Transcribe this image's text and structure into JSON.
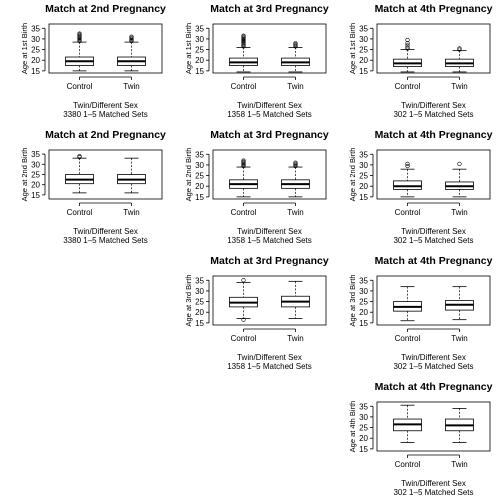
{
  "chart_data": [
    {
      "type": "box",
      "row": 0,
      "col": 0,
      "title": "Match at 2nd Pregnancy",
      "ylabel": "Age at 1st Birth",
      "caption": [
        "Twin/Different Sex",
        "3380 1–5 Matched Sets"
      ],
      "ylim": [
        14,
        37
      ],
      "yticks": [
        15,
        20,
        25,
        30,
        35
      ],
      "categories": [
        "Control",
        "Twin"
      ],
      "boxes": [
        {
          "whislo": 15,
          "q1": 17.5,
          "med": 19.5,
          "q3": 21.5,
          "whishi": 28.5,
          "outliers": [
            29,
            29.5,
            30,
            30.5,
            31,
            31.5,
            32,
            32.5
          ]
        },
        {
          "whislo": 15,
          "q1": 17.5,
          "med": 19.5,
          "q3": 21.5,
          "whishi": 28.5,
          "outliers": [
            29,
            29.5,
            30,
            30.5,
            31
          ]
        }
      ]
    },
    {
      "type": "box",
      "row": 0,
      "col": 1,
      "title": "Match at 3rd Pregnancy",
      "ylabel": "Age at 1st Birth",
      "caption": [
        "Twin/Different Sex",
        "1358 1–5 Matched Sets"
      ],
      "ylim": [
        14,
        37
      ],
      "yticks": [
        15,
        20,
        25,
        30,
        35
      ],
      "categories": [
        "Control",
        "Twin"
      ],
      "boxes": [
        {
          "whislo": 14.5,
          "q1": 17.5,
          "med": 19,
          "q3": 21,
          "whishi": 26,
          "outliers": [
            26.5,
            27,
            27.5,
            28,
            28.5,
            29,
            29.5,
            30,
            30.5,
            31,
            31.5
          ]
        },
        {
          "whislo": 14.5,
          "q1": 17.5,
          "med": 19,
          "q3": 21,
          "whishi": 26,
          "outliers": [
            26.5,
            27,
            27.5,
            28
          ]
        }
      ]
    },
    {
      "type": "box",
      "row": 0,
      "col": 2,
      "title": "Match at 4th Pregnancy",
      "ylabel": "Age at 1st Birth",
      "caption": [
        "Twin/Different Sex",
        "302 1–5 Matched Sets"
      ],
      "ylim": [
        14,
        37
      ],
      "yticks": [
        15,
        20,
        25,
        30,
        35
      ],
      "categories": [
        "Control",
        "Twin"
      ],
      "boxes": [
        {
          "whislo": 14.5,
          "q1": 17,
          "med": 18.5,
          "q3": 20.5,
          "whishi": 25,
          "outliers": [
            25.5,
            26,
            27,
            28,
            29.5
          ]
        },
        {
          "whislo": 14.5,
          "q1": 17,
          "med": 18.5,
          "q3": 20.5,
          "whishi": 24.5,
          "outliers": [
            25,
            25.5
          ]
        }
      ]
    },
    {
      "type": "box",
      "row": 1,
      "col": 0,
      "title": "Match at 2nd Pregnancy",
      "ylabel": "Age at 2nd Birth",
      "caption": [
        "Twin/Different Sex",
        "3380 1–5 Matched Sets"
      ],
      "ylim": [
        13,
        37
      ],
      "yticks": [
        15,
        20,
        25,
        30,
        35
      ],
      "categories": [
        "Control",
        "Twin"
      ],
      "boxes": [
        {
          "whislo": 16,
          "q1": 20.5,
          "med": 22.5,
          "q3": 25,
          "whishi": 33,
          "outliers": [
            33.5,
            34
          ]
        },
        {
          "whislo": 16,
          "q1": 20.5,
          "med": 22.5,
          "q3": 25,
          "whishi": 33,
          "outliers": []
        }
      ]
    },
    {
      "type": "box",
      "row": 1,
      "col": 1,
      "title": "Match at 3rd Pregnancy",
      "ylabel": "Age at 2nd Birth",
      "caption": [
        "Twin/Different Sex",
        "1358 1–5 Matched Sets"
      ],
      "ylim": [
        14,
        37
      ],
      "yticks": [
        15,
        20,
        25,
        30,
        35
      ],
      "categories": [
        "Control",
        "Twin"
      ],
      "boxes": [
        {
          "whislo": 15,
          "q1": 19,
          "med": 21,
          "q3": 23,
          "whishi": 29,
          "outliers": [
            29.5,
            30,
            30.5,
            31,
            31.5,
            32
          ]
        },
        {
          "whislo": 15,
          "q1": 19,
          "med": 21,
          "q3": 23,
          "whishi": 29,
          "outliers": [
            29.5,
            30,
            30.5,
            31
          ]
        }
      ]
    },
    {
      "type": "box",
      "row": 1,
      "col": 2,
      "title": "Match at 4th Pregnancy",
      "ylabel": "Age at 2nd Birth",
      "caption": [
        "Twin/Different Sex",
        "302 1–5 Matched Sets"
      ],
      "ylim": [
        14,
        37
      ],
      "yticks": [
        15,
        20,
        25,
        30,
        35
      ],
      "categories": [
        "Control",
        "Twin"
      ],
      "boxes": [
        {
          "whislo": 15,
          "q1": 18.5,
          "med": 20,
          "q3": 22.5,
          "whishi": 28,
          "outliers": [
            29.5,
            30.5
          ]
        },
        {
          "whislo": 15,
          "q1": 18.5,
          "med": 20,
          "q3": 22,
          "whishi": 28,
          "outliers": [
            30.5
          ]
        }
      ]
    },
    {
      "type": "box",
      "row": 2,
      "col": 1,
      "title": "Match at 3rd Pregnancy",
      "ylabel": "Age at 3rd Birth",
      "caption": [
        "Twin/Different Sex",
        "1358 1–5 Matched Sets"
      ],
      "ylim": [
        14,
        37
      ],
      "yticks": [
        15,
        20,
        25,
        30,
        35
      ],
      "categories": [
        "Control",
        "Twin"
      ],
      "boxes": [
        {
          "whislo": 17,
          "q1": 22.5,
          "med": 24.5,
          "q3": 27,
          "whishi": 34,
          "outliers": [
            35,
            16.5
          ]
        },
        {
          "whislo": 17,
          "q1": 22.5,
          "med": 25,
          "q3": 27.5,
          "whishi": 34.5,
          "outliers": []
        }
      ]
    },
    {
      "type": "box",
      "row": 2,
      "col": 2,
      "title": "Match at 4th Pregnancy",
      "ylabel": "Age at 3rd Birth",
      "caption": [
        "Twin/Different Sex",
        "302 1–5 Matched Sets"
      ],
      "ylim": [
        14,
        37
      ],
      "yticks": [
        15,
        20,
        25,
        30,
        35
      ],
      "categories": [
        "Control",
        "Twin"
      ],
      "boxes": [
        {
          "whislo": 16,
          "q1": 20.5,
          "med": 22.5,
          "q3": 25,
          "whishi": 32,
          "outliers": []
        },
        {
          "whislo": 16.5,
          "q1": 21,
          "med": 23.5,
          "q3": 25.5,
          "whishi": 32,
          "outliers": []
        }
      ]
    },
    {
      "type": "box",
      "row": 3,
      "col": 2,
      "title": "Match at 4th Pregnancy",
      "ylabel": "Age at 4th Birth",
      "caption": [
        "Twin/Different Sex",
        "302 1–5 Matched Sets"
      ],
      "ylim": [
        14,
        37
      ],
      "yticks": [
        15,
        20,
        25,
        30,
        35
      ],
      "categories": [
        "Control",
        "Twin"
      ],
      "boxes": [
        {
          "whislo": 18,
          "q1": 23.5,
          "med": 26.5,
          "q3": 29,
          "whishi": 35.5,
          "outliers": []
        },
        {
          "whislo": 18,
          "q1": 23.5,
          "med": 26,
          "q3": 29,
          "whishi": 34,
          "outliers": []
        }
      ]
    }
  ]
}
